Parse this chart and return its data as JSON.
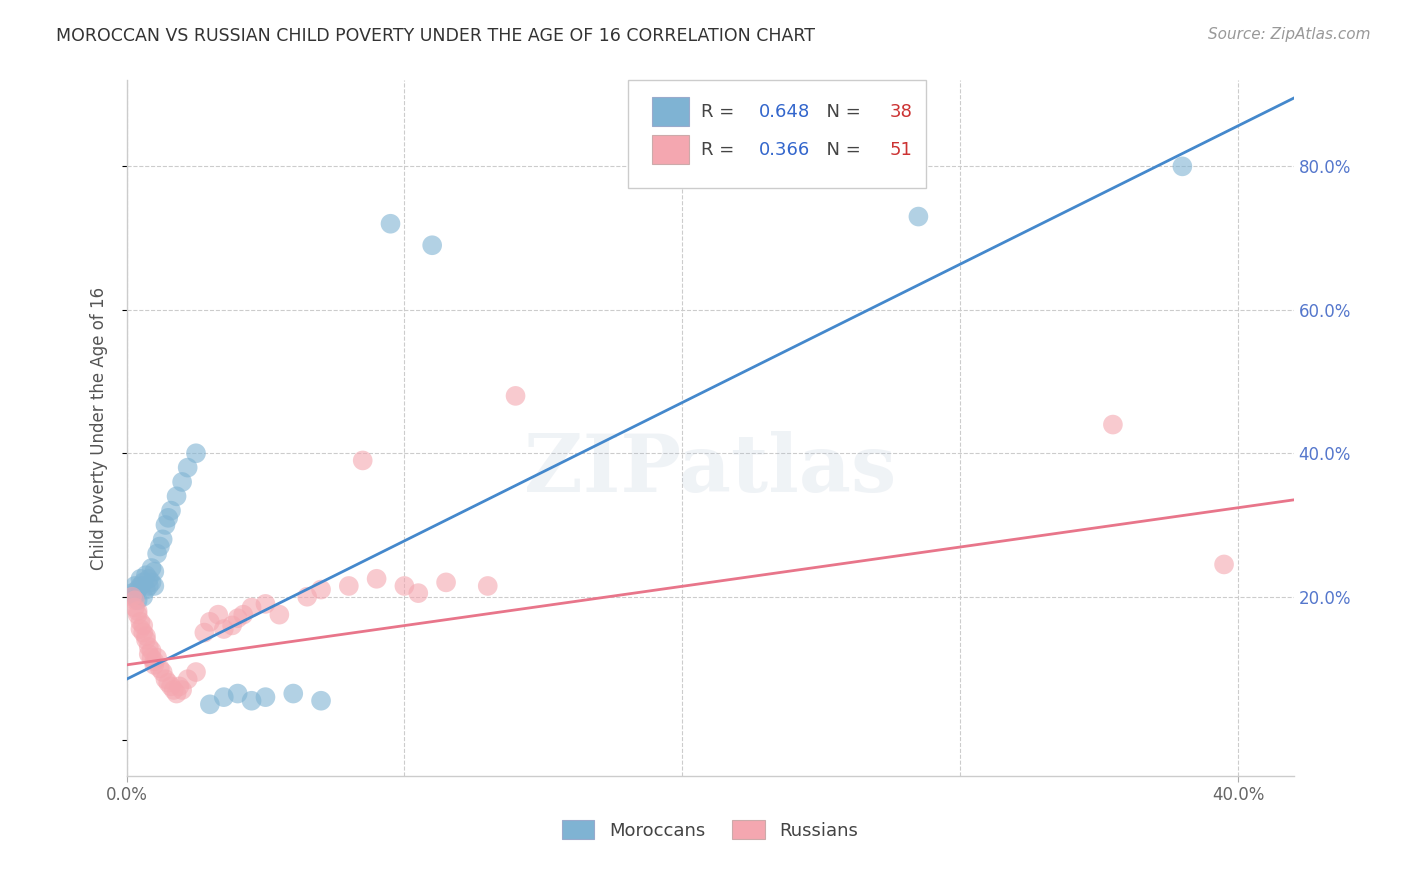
{
  "title": "MOROCCAN VS RUSSIAN CHILD POVERTY UNDER THE AGE OF 16 CORRELATION CHART",
  "source": "Source: ZipAtlas.com",
  "ylabel": "Child Poverty Under the Age of 16",
  "xlim": [
    0.0,
    0.42
  ],
  "ylim": [
    -0.05,
    0.92
  ],
  "right_ytick_vals": [
    0.2,
    0.4,
    0.6,
    0.8
  ],
  "right_yticklabels": [
    "20.0%",
    "40.0%",
    "60.0%",
    "80.0%"
  ],
  "xtick_vals": [
    0.0,
    0.1,
    0.2,
    0.3,
    0.4
  ],
  "xticklabels": [
    "0.0%",
    "",
    "",
    "",
    "40.0%"
  ],
  "moroccan_color": "#7fb3d3",
  "russian_color": "#f4a7b0",
  "moroccan_line_color": "#4488cc",
  "russian_line_color": "#e8758a",
  "moroccan_R": 0.648,
  "moroccan_N": 38,
  "russian_R": 0.366,
  "russian_N": 51,
  "watermark": "ZIPatlas",
  "blue_line_x0": 0.0,
  "blue_line_y0": 0.085,
  "blue_line_x1": 0.42,
  "blue_line_y1": 0.895,
  "pink_line_x0": 0.0,
  "pink_line_y0": 0.105,
  "pink_line_x1": 0.42,
  "pink_line_y1": 0.335,
  "moroccan_scatter": [
    [
      0.002,
      0.205
    ],
    [
      0.003,
      0.215
    ],
    [
      0.003,
      0.2
    ],
    [
      0.004,
      0.21
    ],
    [
      0.004,
      0.195
    ],
    [
      0.005,
      0.225
    ],
    [
      0.005,
      0.215
    ],
    [
      0.006,
      0.22
    ],
    [
      0.006,
      0.2
    ],
    [
      0.007,
      0.23
    ],
    [
      0.007,
      0.21
    ],
    [
      0.008,
      0.225
    ],
    [
      0.008,
      0.215
    ],
    [
      0.009,
      0.24
    ],
    [
      0.009,
      0.22
    ],
    [
      0.01,
      0.235
    ],
    [
      0.01,
      0.215
    ],
    [
      0.011,
      0.26
    ],
    [
      0.012,
      0.27
    ],
    [
      0.013,
      0.28
    ],
    [
      0.014,
      0.3
    ],
    [
      0.015,
      0.31
    ],
    [
      0.016,
      0.32
    ],
    [
      0.018,
      0.34
    ],
    [
      0.02,
      0.36
    ],
    [
      0.022,
      0.38
    ],
    [
      0.025,
      0.4
    ],
    [
      0.03,
      0.05
    ],
    [
      0.035,
      0.06
    ],
    [
      0.04,
      0.065
    ],
    [
      0.045,
      0.055
    ],
    [
      0.05,
      0.06
    ],
    [
      0.06,
      0.065
    ],
    [
      0.07,
      0.055
    ],
    [
      0.095,
      0.72
    ],
    [
      0.11,
      0.69
    ],
    [
      0.285,
      0.73
    ],
    [
      0.38,
      0.8
    ]
  ],
  "russian_scatter": [
    [
      0.002,
      0.2
    ],
    [
      0.003,
      0.195
    ],
    [
      0.003,
      0.185
    ],
    [
      0.004,
      0.18
    ],
    [
      0.004,
      0.175
    ],
    [
      0.005,
      0.165
    ],
    [
      0.005,
      0.155
    ],
    [
      0.006,
      0.16
    ],
    [
      0.006,
      0.15
    ],
    [
      0.007,
      0.145
    ],
    [
      0.007,
      0.14
    ],
    [
      0.008,
      0.13
    ],
    [
      0.008,
      0.12
    ],
    [
      0.009,
      0.115
    ],
    [
      0.009,
      0.125
    ],
    [
      0.01,
      0.11
    ],
    [
      0.01,
      0.105
    ],
    [
      0.011,
      0.115
    ],
    [
      0.012,
      0.1
    ],
    [
      0.013,
      0.095
    ],
    [
      0.014,
      0.085
    ],
    [
      0.015,
      0.08
    ],
    [
      0.016,
      0.075
    ],
    [
      0.017,
      0.07
    ],
    [
      0.018,
      0.065
    ],
    [
      0.019,
      0.075
    ],
    [
      0.02,
      0.07
    ],
    [
      0.022,
      0.085
    ],
    [
      0.025,
      0.095
    ],
    [
      0.028,
      0.15
    ],
    [
      0.03,
      0.165
    ],
    [
      0.033,
      0.175
    ],
    [
      0.035,
      0.155
    ],
    [
      0.038,
      0.16
    ],
    [
      0.04,
      0.17
    ],
    [
      0.042,
      0.175
    ],
    [
      0.045,
      0.185
    ],
    [
      0.05,
      0.19
    ],
    [
      0.055,
      0.175
    ],
    [
      0.065,
      0.2
    ],
    [
      0.07,
      0.21
    ],
    [
      0.08,
      0.215
    ],
    [
      0.09,
      0.225
    ],
    [
      0.1,
      0.215
    ],
    [
      0.105,
      0.205
    ],
    [
      0.115,
      0.22
    ],
    [
      0.13,
      0.215
    ],
    [
      0.085,
      0.39
    ],
    [
      0.14,
      0.48
    ],
    [
      0.355,
      0.44
    ],
    [
      0.395,
      0.245
    ]
  ]
}
